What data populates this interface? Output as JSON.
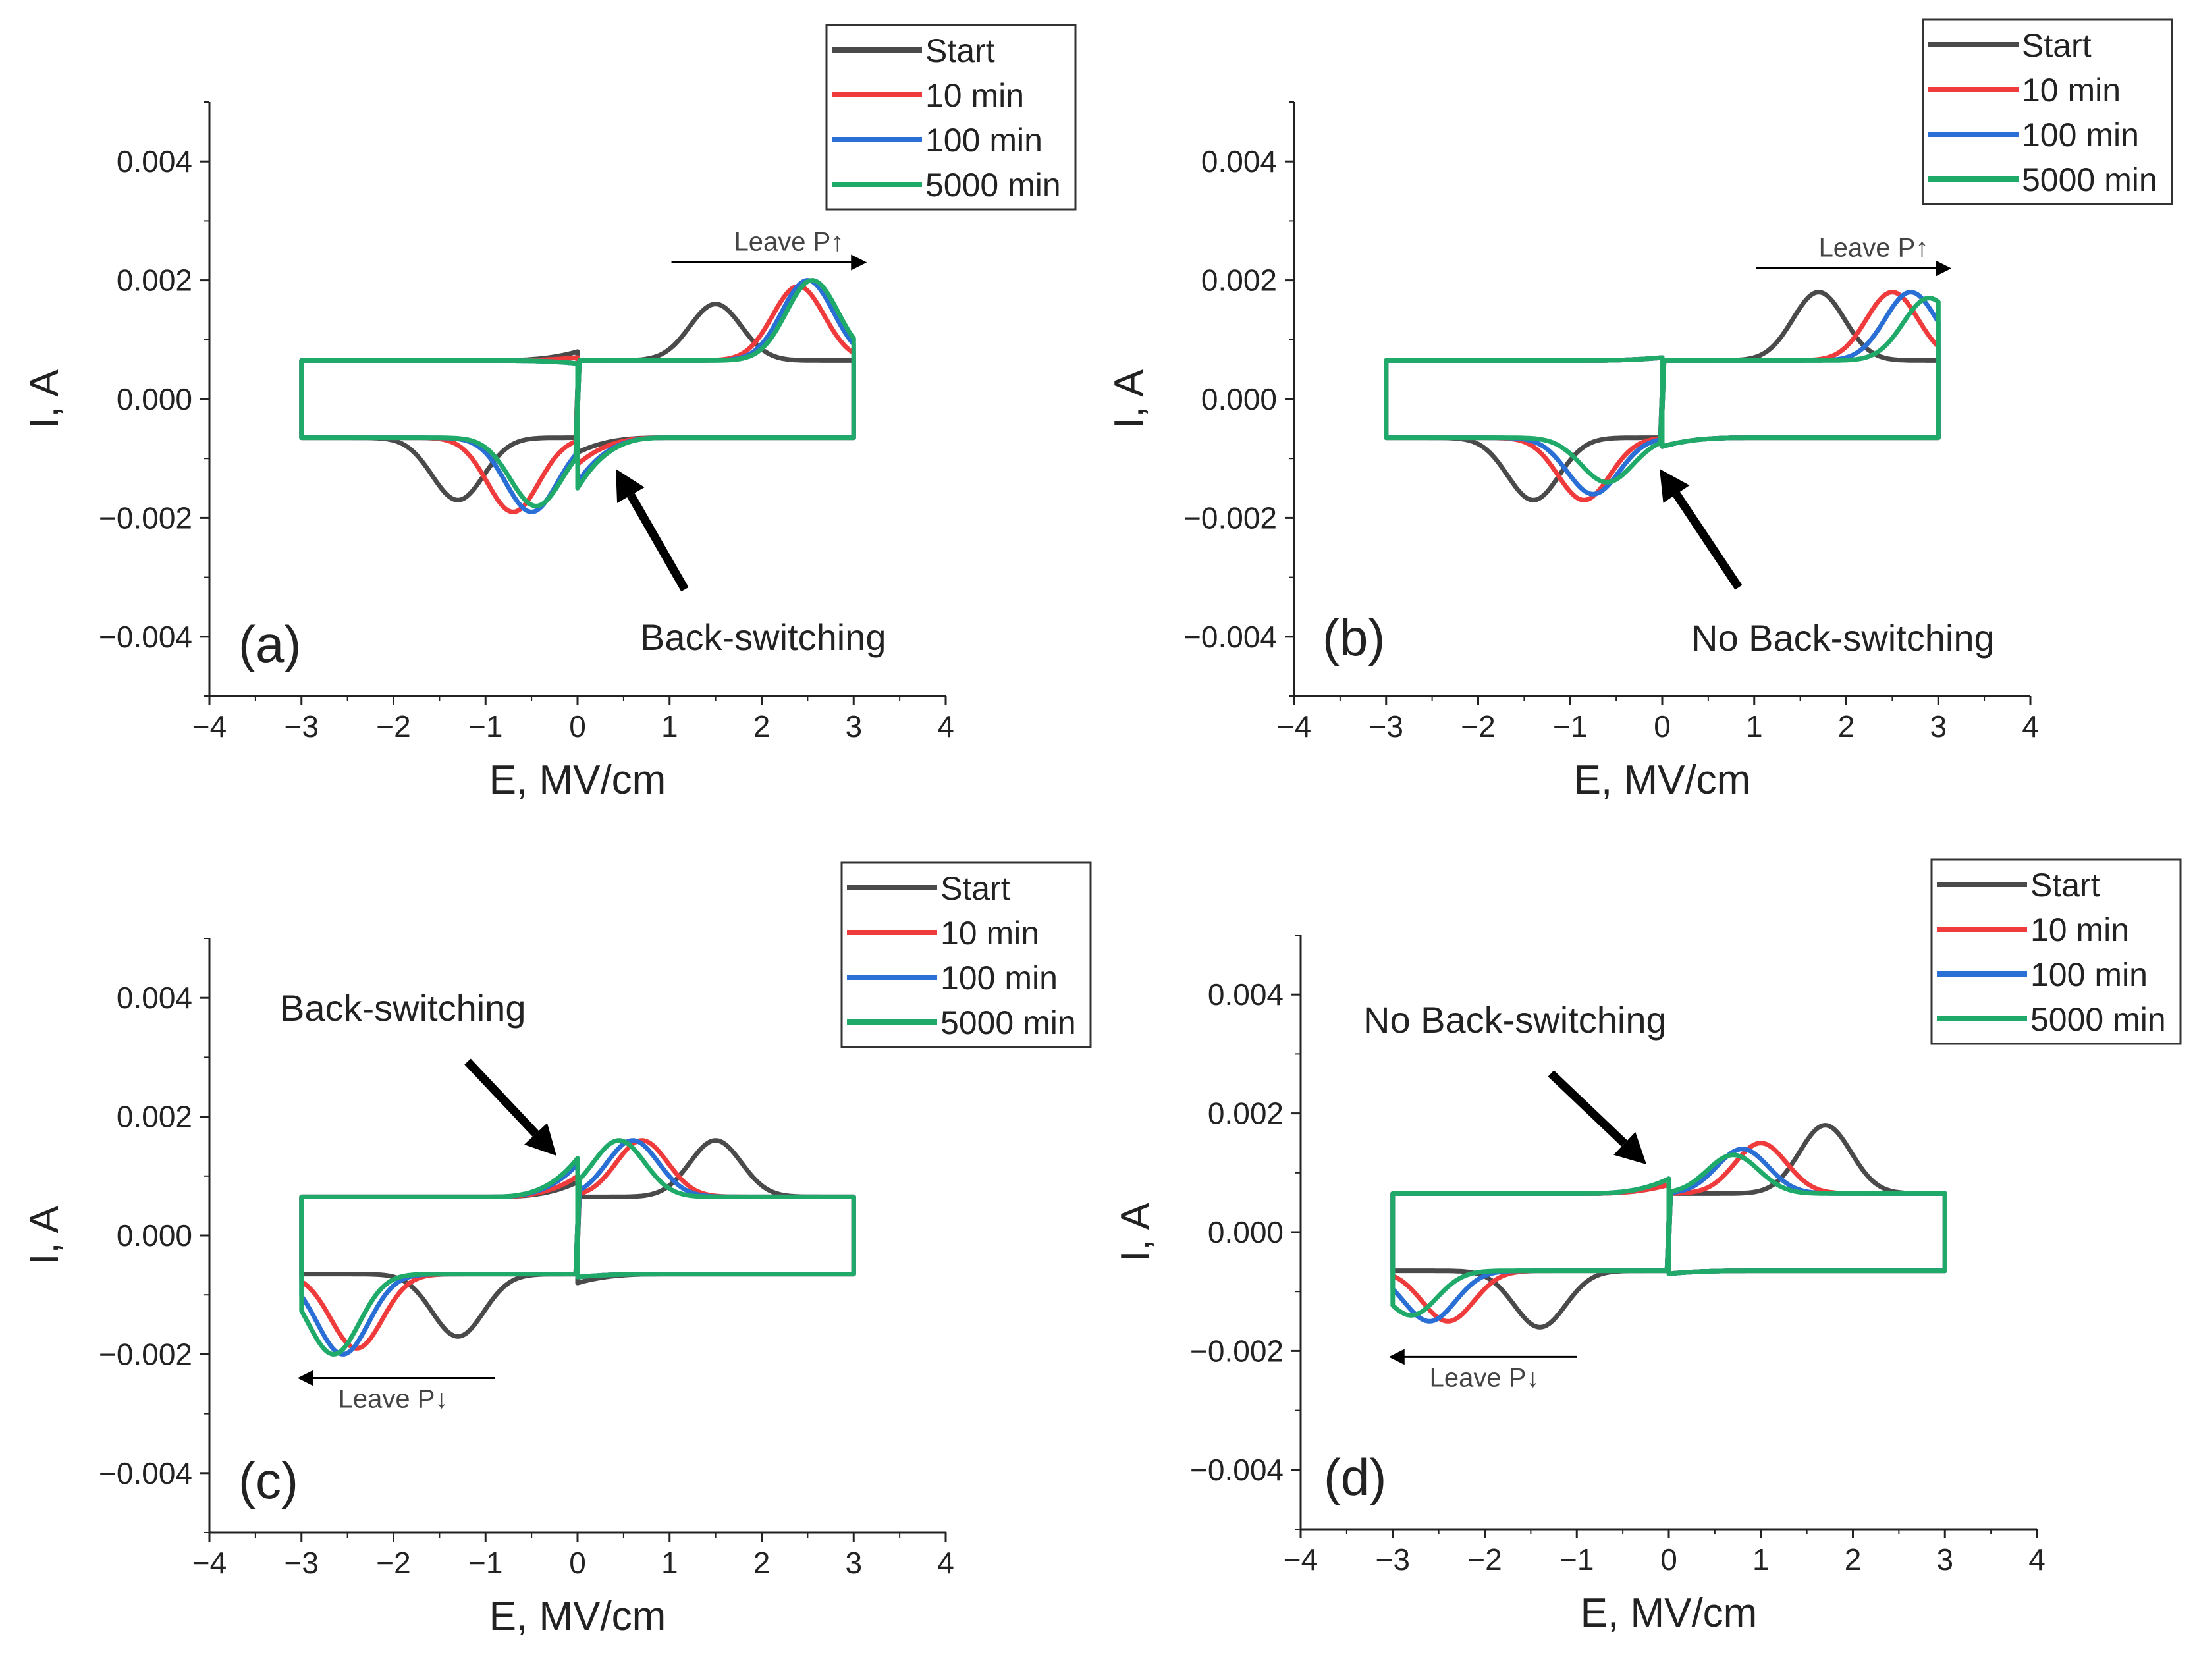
{
  "figure": {
    "colors": {
      "Start": "#4a4a4a",
      "10 min": "#ef3b3b",
      "100 min": "#2a6fd6",
      "5000 min": "#1faa6a"
    }
  },
  "chart_data": [
    {
      "panel": "(a)",
      "type": "line",
      "xlabel": "E, MV/cm",
      "ylabel": "I, A",
      "xlim": [
        -4,
        4
      ],
      "ylim": [
        -0.005,
        0.005
      ],
      "xticks": [
        -4,
        -3,
        -2,
        -1,
        0,
        1,
        2,
        3,
        4
      ],
      "xticklabels": [
        "−4",
        "−3",
        "−2",
        "−1",
        "0",
        "1",
        "2",
        "3",
        "4"
      ],
      "yticks": [
        -0.004,
        -0.002,
        0.0,
        0.002,
        0.004
      ],
      "yticklabels": [
        "−0.004",
        "−0.002",
        "0.000",
        "0.002",
        "0.004"
      ],
      "legend": [
        "Start",
        "10 min",
        "100 min",
        "5000 min"
      ],
      "annotation": "Back-switching",
      "arrow_label": "Leave P↑",
      "series": [
        {
          "name": "Start",
          "pos_peak": [
            1.5,
            0.0016
          ],
          "neg_peak": [
            -1.3,
            -0.0017
          ],
          "pos_spike": 0.0008,
          "neg_spike": -0.0009
        },
        {
          "name": "10 min",
          "pos_peak": [
            2.4,
            0.0019
          ],
          "neg_peak": [
            -0.7,
            -0.0019
          ],
          "pos_spike": 0.0007,
          "neg_spike": -0.0011
        },
        {
          "name": "100 min",
          "pos_peak": [
            2.5,
            0.002
          ],
          "neg_peak": [
            -0.5,
            -0.0019
          ],
          "pos_spike": 0.0006,
          "neg_spike": -0.0014
        },
        {
          "name": "5000 min",
          "pos_peak": [
            2.55,
            0.002
          ],
          "neg_peak": [
            -0.45,
            -0.0018
          ],
          "pos_spike": 0.0006,
          "neg_spike": -0.0015
        }
      ]
    },
    {
      "panel": "(b)",
      "type": "line",
      "xlabel": "E, MV/cm",
      "ylabel": "I, A",
      "xlim": [
        -4,
        4
      ],
      "ylim": [
        -0.005,
        0.005
      ],
      "xticks": [
        -4,
        -3,
        -2,
        -1,
        0,
        1,
        2,
        3,
        4
      ],
      "xticklabels": [
        "−4",
        "−3",
        "−2",
        "−1",
        "0",
        "1",
        "2",
        "3",
        "4"
      ],
      "yticks": [
        -0.004,
        -0.002,
        0.0,
        0.002,
        0.004
      ],
      "yticklabels": [
        "−0.004",
        "−0.002",
        "0.000",
        "0.002",
        "0.004"
      ],
      "legend": [
        "Start",
        "10 min",
        "100 min",
        "5000 min"
      ],
      "annotation": "No Back-switching",
      "arrow_label": "Leave P↑",
      "series": [
        {
          "name": "Start",
          "pos_peak": [
            1.7,
            0.0018
          ],
          "neg_peak": [
            -1.4,
            -0.0017
          ],
          "pos_spike": 0.0007,
          "neg_spike": -0.0008
        },
        {
          "name": "10 min",
          "pos_peak": [
            2.5,
            0.0018
          ],
          "neg_peak": [
            -0.85,
            -0.0017
          ],
          "pos_spike": 0.0007,
          "neg_spike": -0.0008
        },
        {
          "name": "100 min",
          "pos_peak": [
            2.7,
            0.0018
          ],
          "neg_peak": [
            -0.75,
            -0.0016
          ],
          "pos_spike": 0.0007,
          "neg_spike": -0.0008
        },
        {
          "name": "5000 min",
          "pos_peak": [
            2.9,
            0.0017
          ],
          "neg_peak": [
            -0.6,
            -0.0014
          ],
          "pos_spike": 0.0007,
          "neg_spike": -0.0008
        }
      ]
    },
    {
      "panel": "(c)",
      "type": "line",
      "xlabel": "E, MV/cm",
      "ylabel": "I, A",
      "xlim": [
        -4,
        4
      ],
      "ylim": [
        -0.005,
        0.005
      ],
      "xticks": [
        -4,
        -3,
        -2,
        -1,
        0,
        1,
        2,
        3,
        4
      ],
      "xticklabels": [
        "−4",
        "−3",
        "−2",
        "−1",
        "0",
        "1",
        "2",
        "3",
        "4"
      ],
      "yticks": [
        -0.004,
        -0.002,
        0.0,
        0.002,
        0.004
      ],
      "yticklabels": [
        "−0.004",
        "−0.002",
        "0.000",
        "0.002",
        "0.004"
      ],
      "legend": [
        "Start",
        "10 min",
        "100 min",
        "5000 min"
      ],
      "annotation": "Back-switching",
      "arrow_label": "Leave P↓",
      "series": [
        {
          "name": "Start",
          "pos_peak": [
            1.5,
            0.0016
          ],
          "neg_peak": [
            -1.3,
            -0.0017
          ],
          "pos_spike": 0.0009,
          "neg_spike": -0.0008
        },
        {
          "name": "10 min",
          "pos_peak": [
            0.7,
            0.0016
          ],
          "neg_peak": [
            -2.4,
            -0.0019
          ],
          "pos_spike": 0.001,
          "neg_spike": -0.0007
        },
        {
          "name": "100 min",
          "pos_peak": [
            0.6,
            0.0016
          ],
          "neg_peak": [
            -2.55,
            -0.002
          ],
          "pos_spike": 0.0012,
          "neg_spike": -0.0007
        },
        {
          "name": "5000 min",
          "pos_peak": [
            0.45,
            0.0016
          ],
          "neg_peak": [
            -2.65,
            -0.002
          ],
          "pos_spike": 0.0013,
          "neg_spike": -0.0007
        }
      ]
    },
    {
      "panel": "(d)",
      "type": "line",
      "xlabel": "E, MV/cm",
      "ylabel": "I, A",
      "xlim": [
        -4,
        4
      ],
      "ylim": [
        -0.005,
        0.005
      ],
      "xticks": [
        -4,
        -3,
        -2,
        -1,
        0,
        1,
        2,
        3,
        4
      ],
      "xticklabels": [
        "−4",
        "−3",
        "−2",
        "−1",
        "0",
        "1",
        "2",
        "3",
        "4"
      ],
      "yticks": [
        -0.004,
        -0.002,
        0.0,
        0.002,
        0.004
      ],
      "yticklabels": [
        "−0.004",
        "−0.002",
        "0.000",
        "0.002",
        "0.004"
      ],
      "legend": [
        "Start",
        "10 min",
        "100 min",
        "5000 min"
      ],
      "annotation": "No Back-switching",
      "arrow_label": "Leave P↓",
      "series": [
        {
          "name": "Start",
          "pos_peak": [
            1.7,
            0.0018
          ],
          "neg_peak": [
            -1.4,
            -0.0016
          ],
          "pos_spike": 0.0008,
          "neg_spike": -0.0007
        },
        {
          "name": "10 min",
          "pos_peak": [
            1.0,
            0.0015
          ],
          "neg_peak": [
            -2.4,
            -0.0015
          ],
          "pos_spike": 0.0008,
          "neg_spike": -0.0007
        },
        {
          "name": "100 min",
          "pos_peak": [
            0.8,
            0.0014
          ],
          "neg_peak": [
            -2.6,
            -0.0015
          ],
          "pos_spike": 0.0009,
          "neg_spike": -0.0007
        },
        {
          "name": "5000 min",
          "pos_peak": [
            0.7,
            0.0013
          ],
          "neg_peak": [
            -2.8,
            -0.0014
          ],
          "pos_spike": 0.0009,
          "neg_spike": -0.0007
        }
      ]
    }
  ]
}
